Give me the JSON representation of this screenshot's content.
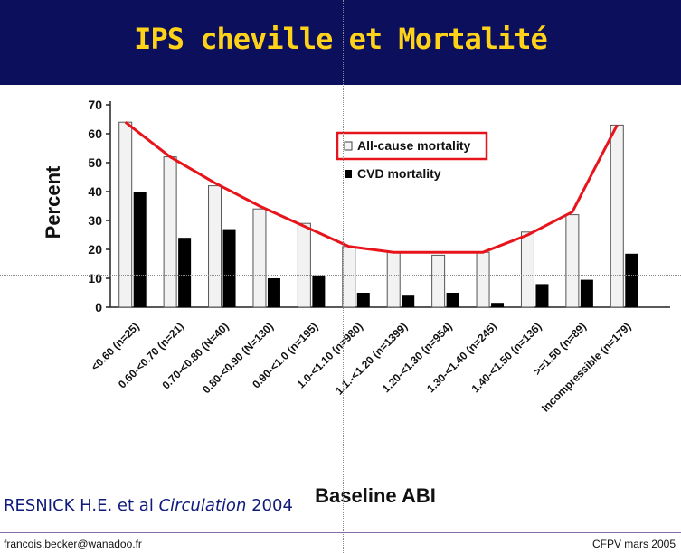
{
  "slide": {
    "title": "IPS cheville et Mortalité",
    "reference_author": "RESNICK H.E. et al",
    "reference_journal": "Circulation",
    "reference_year": "2004",
    "footer_left": "francois.becker@wanadoo.fr",
    "footer_right": "CFPV mars 2005"
  },
  "colors": {
    "banner": "#0b0f5c",
    "title": "#ffd21a",
    "trend_line": "#e8141c",
    "legend_box": "#e8141c",
    "cvd_bar": "#000000"
  },
  "chart_data": {
    "type": "bar",
    "title": "",
    "xlabel": "Baseline ABI",
    "ylabel": "Percent",
    "ylim": [
      0,
      70
    ],
    "yticks": [
      0,
      10,
      20,
      30,
      40,
      50,
      60,
      70
    ],
    "grid": false,
    "legend_position": "top-center",
    "categories": [
      "<0.60 (n=25)",
      "0.60-<0.70 (n=21)",
      "0.70-<0.80 (N=40)",
      "0.80-<0.90 (N=130)",
      "0.90-<1.0 (n=195)",
      "1.0-<1.10 (n=980)",
      "1.1.-<1.20 (n=1399)",
      "1.20-<1.30 (n=954)",
      "1.30-<1.40 (n=245)",
      "1.40-<1.50 (n=136)",
      ">=1.50 (n=89)",
      "Incompressible (n=179)"
    ],
    "series": [
      {
        "name": "All-cause mortality",
        "values": [
          64,
          52,
          42,
          34,
          29,
          21,
          19,
          18,
          19,
          26,
          32,
          63
        ]
      },
      {
        "name": "CVD mortality",
        "values": [
          40,
          24,
          27,
          10,
          11,
          5,
          4,
          5,
          1.5,
          8,
          9.5,
          18.5
        ]
      }
    ],
    "trend_line": {
      "values": [
        64,
        52,
        43,
        35,
        28,
        21,
        19,
        19,
        19,
        25,
        33,
        63
      ]
    }
  }
}
